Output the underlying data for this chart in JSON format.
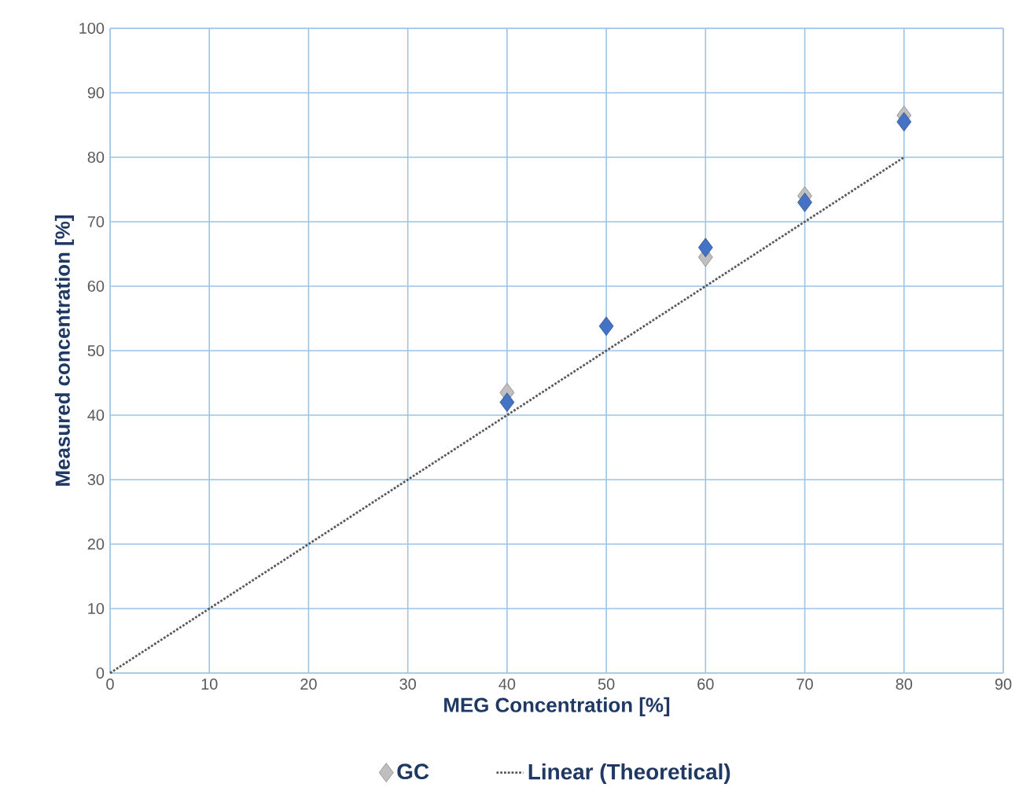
{
  "chart_data": {
    "type": "scatter",
    "xlabel": "MEG Concentration [%]",
    "ylabel": "Measured concentration  [%]",
    "x": [
      40,
      50,
      60,
      70,
      80
    ],
    "series": [
      {
        "name": "GC",
        "color": "#bfbfbf",
        "values": [
          43.5,
          null,
          64.5,
          74,
          86.5
        ]
      },
      {
        "color": "#4472c4",
        "values": [
          42,
          53.8,
          66,
          73,
          85.5
        ]
      },
      {
        "type": "line",
        "name": "Linear (Theoretical)",
        "color": "#595959",
        "x": [
          0,
          80
        ],
        "values": [
          0,
          80
        ],
        "line_style": "dotted",
        "marker": "none"
      }
    ],
    "marker": "diamond",
    "xlim": [
      0,
      90
    ],
    "xticks": [
      0,
      10,
      20,
      30,
      40,
      50,
      60,
      70,
      80,
      90
    ],
    "ylim": [
      0,
      100
    ],
    "yticks": [
      0,
      10,
      20,
      30,
      40,
      50,
      60,
      70,
      80,
      90,
      100
    ],
    "grid": true,
    "legend": "bottom"
  }
}
